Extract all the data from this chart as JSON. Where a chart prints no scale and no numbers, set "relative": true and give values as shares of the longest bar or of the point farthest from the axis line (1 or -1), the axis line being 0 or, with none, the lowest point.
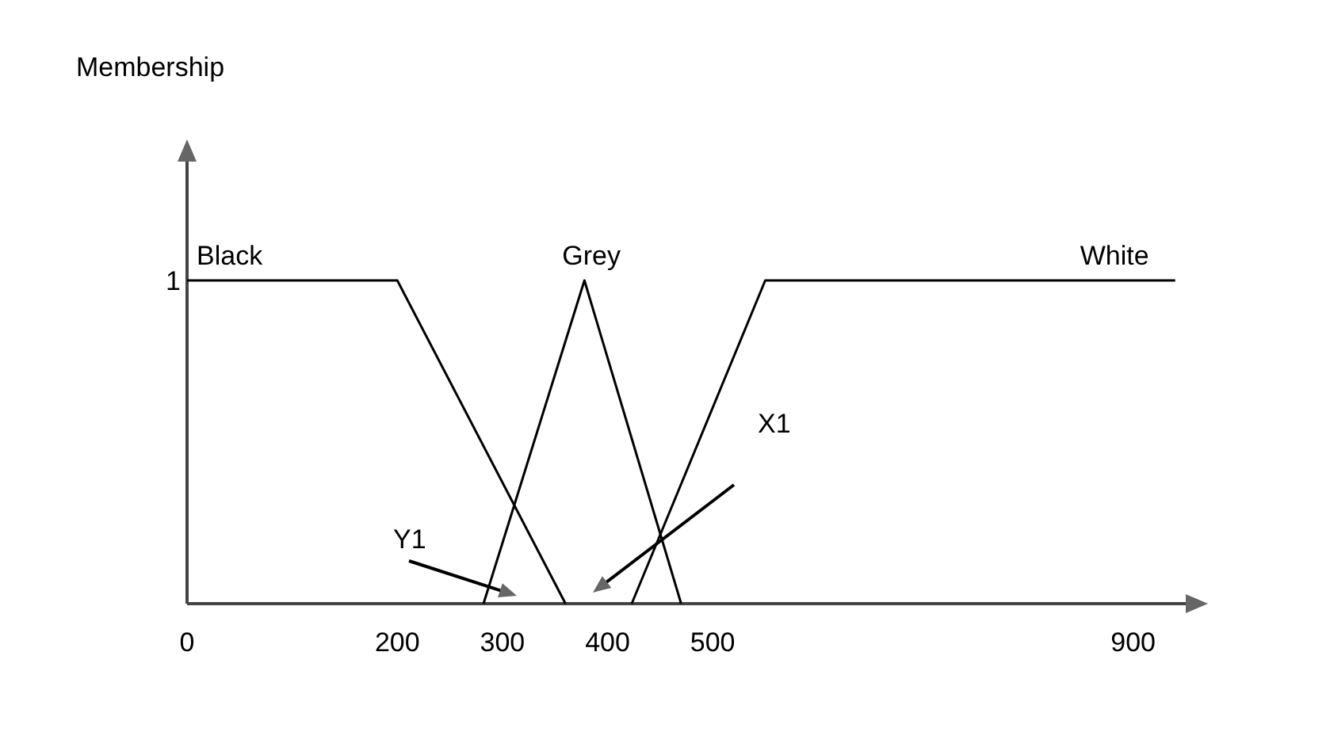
{
  "chart_data": {
    "type": "line",
    "relative": true,
    "xlim": [
      0,
      950
    ],
    "xticks": [
      0,
      200,
      300,
      400,
      500,
      900
    ],
    "series": [
      {
        "name": "Black",
        "color": "#000000",
        "x": [
          0,
          200,
          360
        ],
        "values": [
          1,
          1,
          0
        ]
      },
      {
        "name": "Grey",
        "color": "#000000",
        "x": [
          282,
          378,
          470
        ],
        "values": [
          0,
          1,
          0
        ]
      },
      {
        "name": "White",
        "color": "#000000",
        "x": [
          423,
          550,
          940
        ],
        "values": [
          0,
          1,
          1
        ]
      }
    ],
    "annotations": [
      "Membership",
      "1",
      "Y1",
      "X1"
    ],
    "grid": false,
    "legend": false,
    "marker": "none",
    "line_style": "solid"
  }
}
